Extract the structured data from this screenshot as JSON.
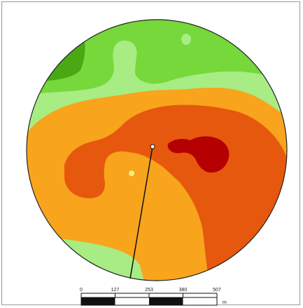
{
  "map": {
    "colors": {
      "dark_green": "#4aa814",
      "green": "#76d83a",
      "light_green": "#a8ec84",
      "orange": "#f8a41c",
      "dark_orange": "#e6580e",
      "red": "#b40000",
      "outline": "#222222"
    }
  },
  "scale_bar": {
    "ticks": [
      "0",
      "127",
      "253",
      "380",
      "507"
    ],
    "unit": "m"
  }
}
